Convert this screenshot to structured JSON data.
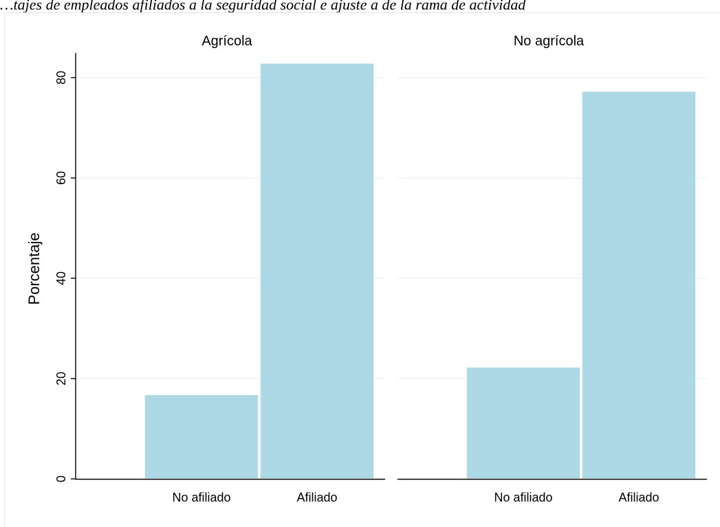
{
  "caption": "…tajes de empleados afiliados a la seguridad social e ajuste a de la rama de actividad",
  "chart_data": {
    "type": "bar",
    "ylabel": "Porcentaje",
    "xlabel": "",
    "ylim": [
      0,
      85
    ],
    "yticks": [
      0,
      20,
      40,
      60,
      80
    ],
    "grid": true,
    "colors": {
      "bar": "#add8e6",
      "grid": "#eaf0f3",
      "axis": "#000000"
    },
    "categories": [
      "No afiliado",
      "Afiliado"
    ],
    "panels": [
      {
        "title": "Agrícola",
        "values": [
          16.8,
          82.9
        ]
      },
      {
        "title": "No agrícola",
        "values": [
          22.3,
          77.3
        ]
      }
    ]
  }
}
